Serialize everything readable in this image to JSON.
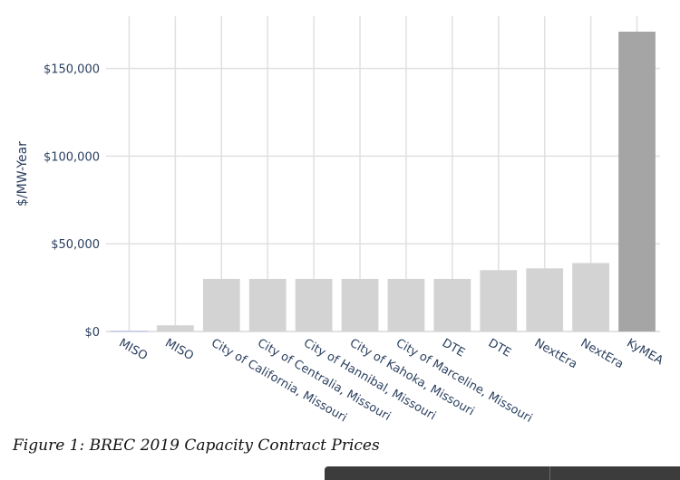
{
  "chart_data": {
    "type": "bar",
    "categories": [
      "MISO",
      "MISO",
      "City of California, Missouri",
      "City of Centralia, Missouri",
      "City of Hannibal, Missouri",
      "City of Kahoka, Missouri",
      "City of Marceline, Missouri",
      "DTE",
      "DTE",
      "NextEra",
      "NextEra",
      "KyMEA"
    ],
    "values": [
      500,
      3500,
      30000,
      30000,
      30000,
      30000,
      30000,
      30000,
      35000,
      36000,
      39000,
      171000
    ],
    "bar_colors": [
      "#c5c8e6",
      "#d3d3d3",
      "#d3d3d3",
      "#d3d3d3",
      "#d3d3d3",
      "#d3d3d3",
      "#d3d3d3",
      "#d3d3d3",
      "#d3d3d3",
      "#d3d3d3",
      "#d3d3d3",
      "#a5a5a5"
    ],
    "ylabel": "$/MW-Year",
    "xlabel": "",
    "title": "",
    "yticks": [
      0,
      50000,
      100000,
      150000
    ],
    "ytick_labels": [
      "$0",
      "$50,000",
      "$100,000",
      "$150,000"
    ],
    "ylim": [
      0,
      180000
    ],
    "grid": true,
    "legend": "none"
  },
  "caption": "Figure 1: BREC 2019 Capacity Contract Prices"
}
